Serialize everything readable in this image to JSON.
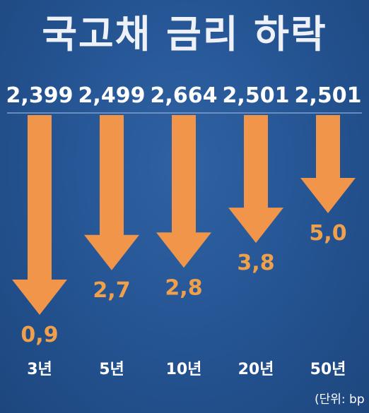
{
  "title": "국고채 금리 하락",
  "unit_note": "(단위: bp",
  "colors": {
    "arrow": "#f0954a",
    "background": "#245391",
    "text": "#ffffff",
    "value_label": "#f0a04b"
  },
  "chart_data": {
    "type": "bar",
    "categories": [
      "3년",
      "5년",
      "10년",
      "20년",
      "50년"
    ],
    "series": [
      {
        "values": [
          2399,
          2499,
          2664,
          2501,
          2501
        ],
        "labels": [
          "2,399",
          "2,499",
          "2,664",
          "2,501",
          "2,501"
        ]
      },
      {
        "values": [
          0.9,
          2.7,
          2.8,
          3.8,
          5.0
        ],
        "labels": [
          "0,9",
          "2,7",
          "2,8",
          "3,8",
          "5,0"
        ]
      }
    ],
    "direction": "down",
    "title": "국고채 금리 하락",
    "xlabel": "",
    "ylabel": ""
  }
}
